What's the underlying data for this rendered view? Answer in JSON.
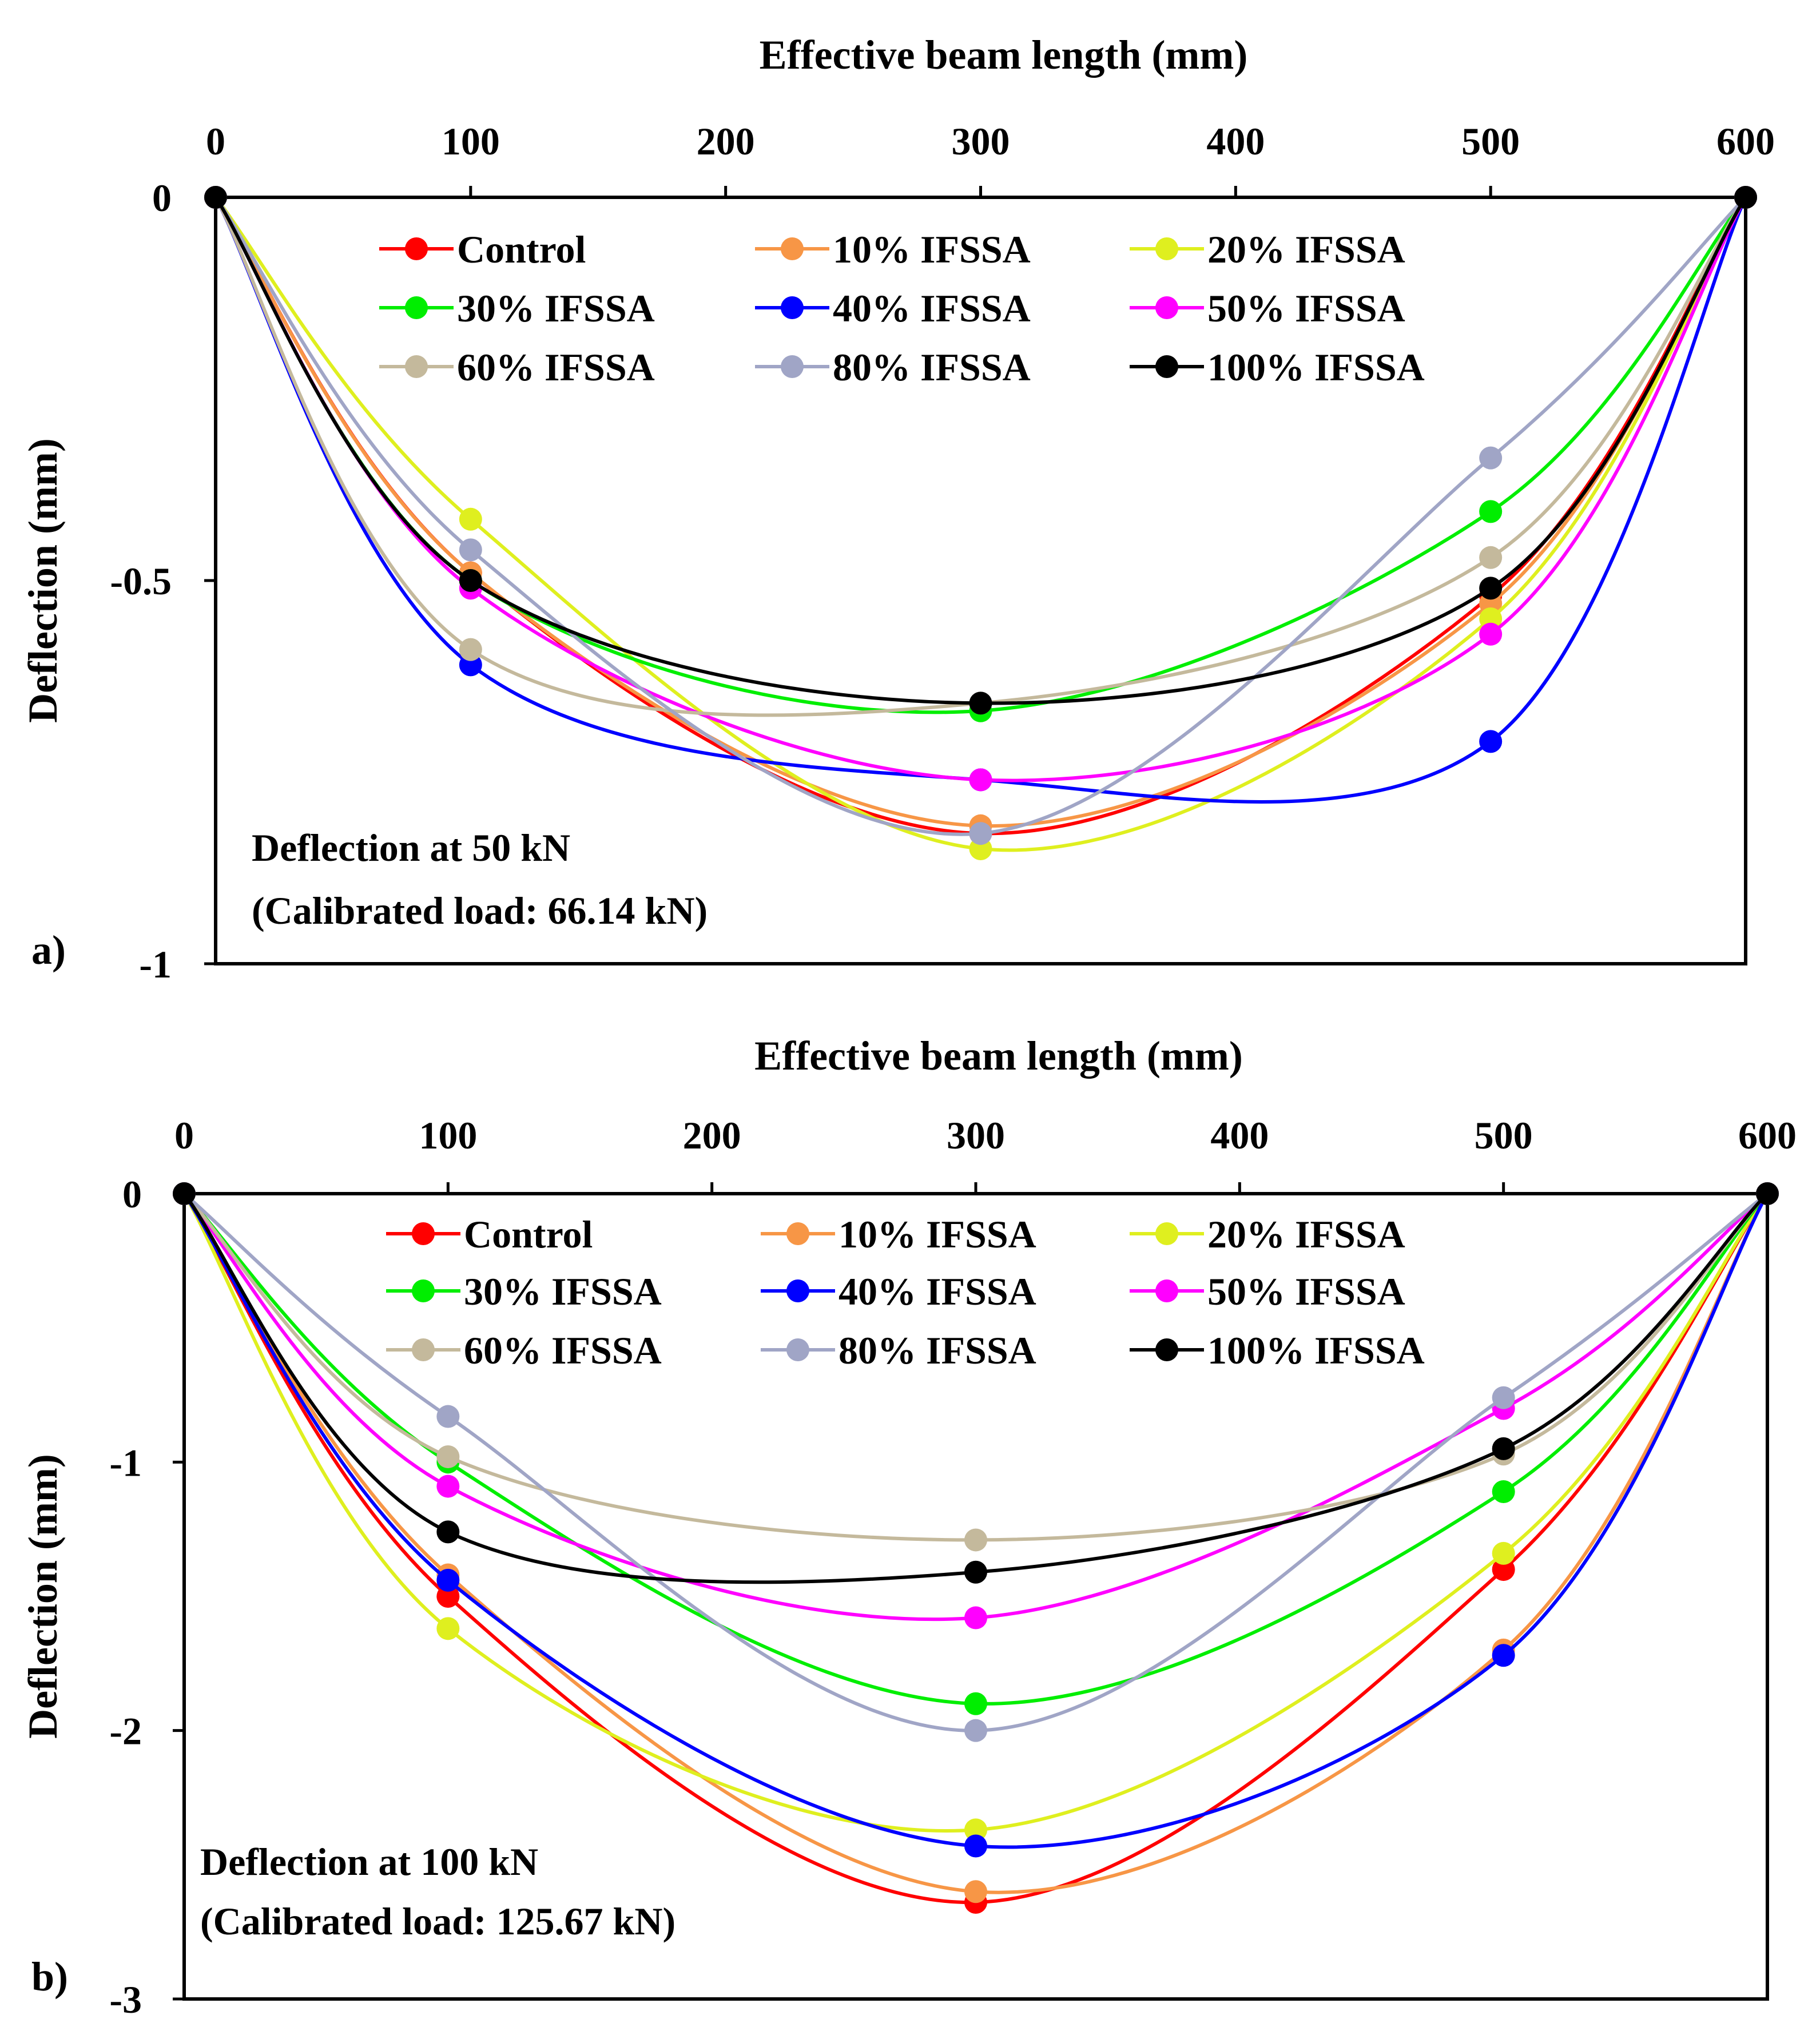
{
  "chart_data": [
    {
      "type": "line",
      "panel_label": "a)",
      "xlabel": "Effective beam length (mm)",
      "ylabel": "Deflection (mm)",
      "xlim": [
        0,
        600
      ],
      "ylim": [
        -1,
        0
      ],
      "x_ticks": [
        "0",
        "100",
        "200",
        "300",
        "400",
        "500",
        "600"
      ],
      "y_ticks": [
        "0",
        "-0.5",
        "-1"
      ],
      "y_tick_values": [
        0,
        -0.5,
        -1
      ],
      "annotation": [
        "Deflection at 50 kN",
        "(Calibrated load: 66.14 kN)"
      ],
      "legend_position": "top-center",
      "x": [
        0,
        100,
        300,
        500,
        600
      ],
      "series": [
        {
          "name": "Control",
          "color": "#ff0000",
          "values": [
            0,
            -0.49,
            -0.83,
            -0.52,
            0
          ]
        },
        {
          "name": "10% IFSSA",
          "color": "#f79646",
          "values": [
            0,
            -0.49,
            -0.82,
            -0.53,
            0
          ]
        },
        {
          "name": "20% IFSSA",
          "color": "#dfef1f",
          "values": [
            0,
            -0.42,
            -0.85,
            -0.55,
            0
          ]
        },
        {
          "name": "30% IFSSA",
          "color": "#00ee00",
          "values": [
            0,
            -0.5,
            -0.67,
            -0.41,
            0
          ]
        },
        {
          "name": "40% IFSSA",
          "color": "#0000ff",
          "values": [
            0,
            -0.61,
            -0.76,
            -0.71,
            0
          ]
        },
        {
          "name": "50% IFSSA",
          "color": "#ff00ff",
          "values": [
            0,
            -0.51,
            -0.76,
            -0.57,
            0
          ]
        },
        {
          "name": "60% IFSSA",
          "color": "#c4b99c",
          "values": [
            0,
            -0.59,
            -0.66,
            -0.47,
            0
          ]
        },
        {
          "name": "80% IFSSA",
          "color": "#a0a5c6",
          "values": [
            0,
            -0.46,
            -0.83,
            -0.34,
            0
          ]
        },
        {
          "name": "100% IFSSA",
          "color": "#000000",
          "values": [
            0,
            -0.5,
            -0.66,
            -0.51,
            0
          ]
        }
      ]
    },
    {
      "type": "line",
      "panel_label": "b)",
      "xlabel": "Effective beam length (mm)",
      "ylabel": "Deflection (mm)",
      "xlim": [
        0,
        600
      ],
      "ylim": [
        -3,
        0
      ],
      "x_ticks": [
        "0",
        "100",
        "200",
        "300",
        "400",
        "500",
        "600"
      ],
      "y_ticks": [
        "0",
        "-1",
        "-2",
        "-3"
      ],
      "y_tick_values": [
        0,
        -1,
        -2,
        -3
      ],
      "annotation": [
        "Deflection at 100 kN",
        "(Calibrated load: 125.67 kN)"
      ],
      "legend_position": "top-center",
      "x": [
        0,
        100,
        300,
        500,
        600
      ],
      "series": [
        {
          "name": "Control",
          "color": "#ff0000",
          "values": [
            0,
            -1.5,
            -2.64,
            -1.4,
            0
          ]
        },
        {
          "name": "10% IFSSA",
          "color": "#f79646",
          "values": [
            0,
            -1.42,
            -2.6,
            -1.7,
            0
          ]
        },
        {
          "name": "20% IFSSA",
          "color": "#dfef1f",
          "values": [
            0,
            -1.62,
            -2.37,
            -1.34,
            0
          ]
        },
        {
          "name": "30% IFSSA",
          "color": "#00ee00",
          "values": [
            0,
            -1.0,
            -1.9,
            -1.11,
            0
          ]
        },
        {
          "name": "40% IFSSA",
          "color": "#0000ff",
          "values": [
            0,
            -1.44,
            -2.43,
            -1.72,
            0
          ]
        },
        {
          "name": "50% IFSSA",
          "color": "#ff00ff",
          "values": [
            0,
            -1.09,
            -1.58,
            -0.8,
            0
          ]
        },
        {
          "name": "60% IFSSA",
          "color": "#c4b99c",
          "values": [
            0,
            -0.98,
            -1.29,
            -0.97,
            0
          ]
        },
        {
          "name": "80% IFSSA",
          "color": "#a0a5c6",
          "values": [
            0,
            -0.83,
            -2.0,
            -0.76,
            0
          ]
        },
        {
          "name": "100% IFSSA",
          "color": "#000000",
          "values": [
            0,
            -1.26,
            -1.41,
            -0.95,
            0
          ]
        }
      ]
    }
  ]
}
